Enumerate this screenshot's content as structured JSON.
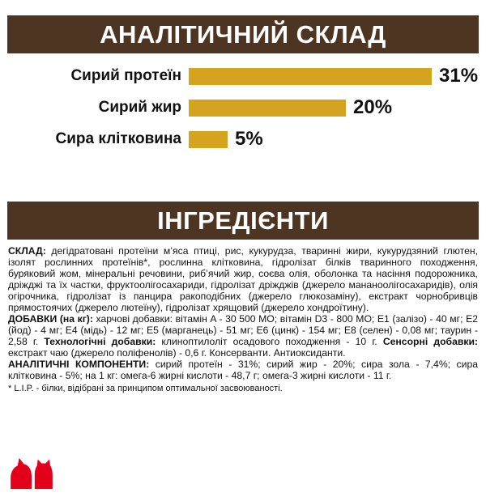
{
  "colors": {
    "brown": "#4D3522",
    "gold": "#D5A41E",
    "red": "#E2001A"
  },
  "banners": {
    "analysis": "АНАЛІТИЧНИЙ СКЛАД",
    "ingredients": "ІНГРЕДІЄНТИ"
  },
  "chart_data": {
    "type": "bar",
    "orientation": "horizontal",
    "title": "АНАЛІТИЧНИЙ СКЛАД",
    "categories": [
      "Сирий протеїн",
      "Сирий жир",
      "Сира клітковина"
    ],
    "values": [
      31,
      20,
      5
    ],
    "value_labels": [
      "31%",
      "20%",
      "5%"
    ],
    "unit": "%",
    "bar_color": "#D5A41E",
    "xlim": [
      0,
      31
    ],
    "grid": false,
    "legend": false
  },
  "ingredients_section": {
    "composition_segments": [
      {
        "bold": true,
        "text": "СКЛАД: "
      },
      {
        "bold": false,
        "text": "дегідратовані протеїни м’яса птиці, рис, кукурудза, тваринні жири, кукурудзяний глютен, ізолят рослинних протеїнів*, рослинна клітковина, гідролізат білків тваринного походження, буряковий жом, мінеральні речовини, риб’ячий жир, соєва олія, оболонка та насіння подорожника, дріжджі та їх частки, фруктоолігосахариди, гідролізат дріжджів (джерело мананоолігосахаридів), олія огірочника, гідролізат із панцира ракоподібних (джерело глюкозаміну), екстракт чорнобривців прямостоячих (джерело лютеїну), гідролізат хрящовий (джерело хондроїтину)."
      }
    ],
    "additives_segments": [
      {
        "bold": true,
        "text": "ДОБАВКИ (на кг): "
      },
      {
        "bold": false,
        "text": "харчові добавки: вітамін A - 30 500 МО; вітамін D3 - 800 МО; E1 (залізо) - 40 мг; E2 (йод) - 4 мг; E4 (мідь) - 12 мг; E5 (марганець) - 51 мг; E6 (цинк) - 154 мг; E8 (селен) - 0,08 мг; таурин - 2,58 г. "
      },
      {
        "bold": true,
        "text": "Технологічні добавки: "
      },
      {
        "bold": false,
        "text": "клиноптилоліт осадового походження - 10 г. "
      },
      {
        "bold": true,
        "text": "Сенсорні добавки: "
      },
      {
        "bold": false,
        "text": "екстракт чаю (джерело поліфенолів) - 0,6 г. Консерванти. Антиоксиданти."
      }
    ],
    "analytical_segments": [
      {
        "bold": true,
        "text": "АНАЛІТИЧНІ КОМПОНЕНТИ: "
      },
      {
        "bold": false,
        "text": "сирий протеїн - 31%; сирий жир - 20%; сира зола - 7,4%; сира клітковина - 5%; на 1 кг: омега-6 жирні кислоти - 48,7 г; омега-3 жирні кислоти - 11 г."
      }
    ],
    "footnote": "* L.I.P. - білки, відібрані за принципом оптимальної засвоюваності."
  },
  "logo": {
    "icon": "royal-canin-dog-cat-crest"
  }
}
